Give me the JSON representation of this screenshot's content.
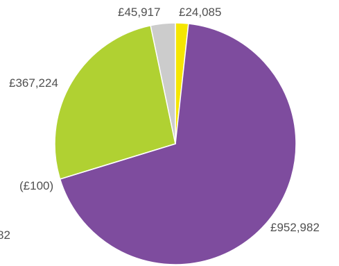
{
  "chart_data": {
    "type": "pie",
    "title": "",
    "slices": [
      {
        "label": "£24,085",
        "value": 24085,
        "color": "#f5e600"
      },
      {
        "label": "£952,982",
        "value": 952982,
        "color": "#7e4c9e"
      },
      {
        "label": "(£100)",
        "value": 100,
        "color": "#ffffff"
      },
      {
        "label": "£367,224",
        "value": 367224,
        "color": "#b0d132"
      },
      {
        "label": "£45,917",
        "value": 45917,
        "color": "#cccccc"
      }
    ],
    "partial_label": "82",
    "legend": "none"
  }
}
